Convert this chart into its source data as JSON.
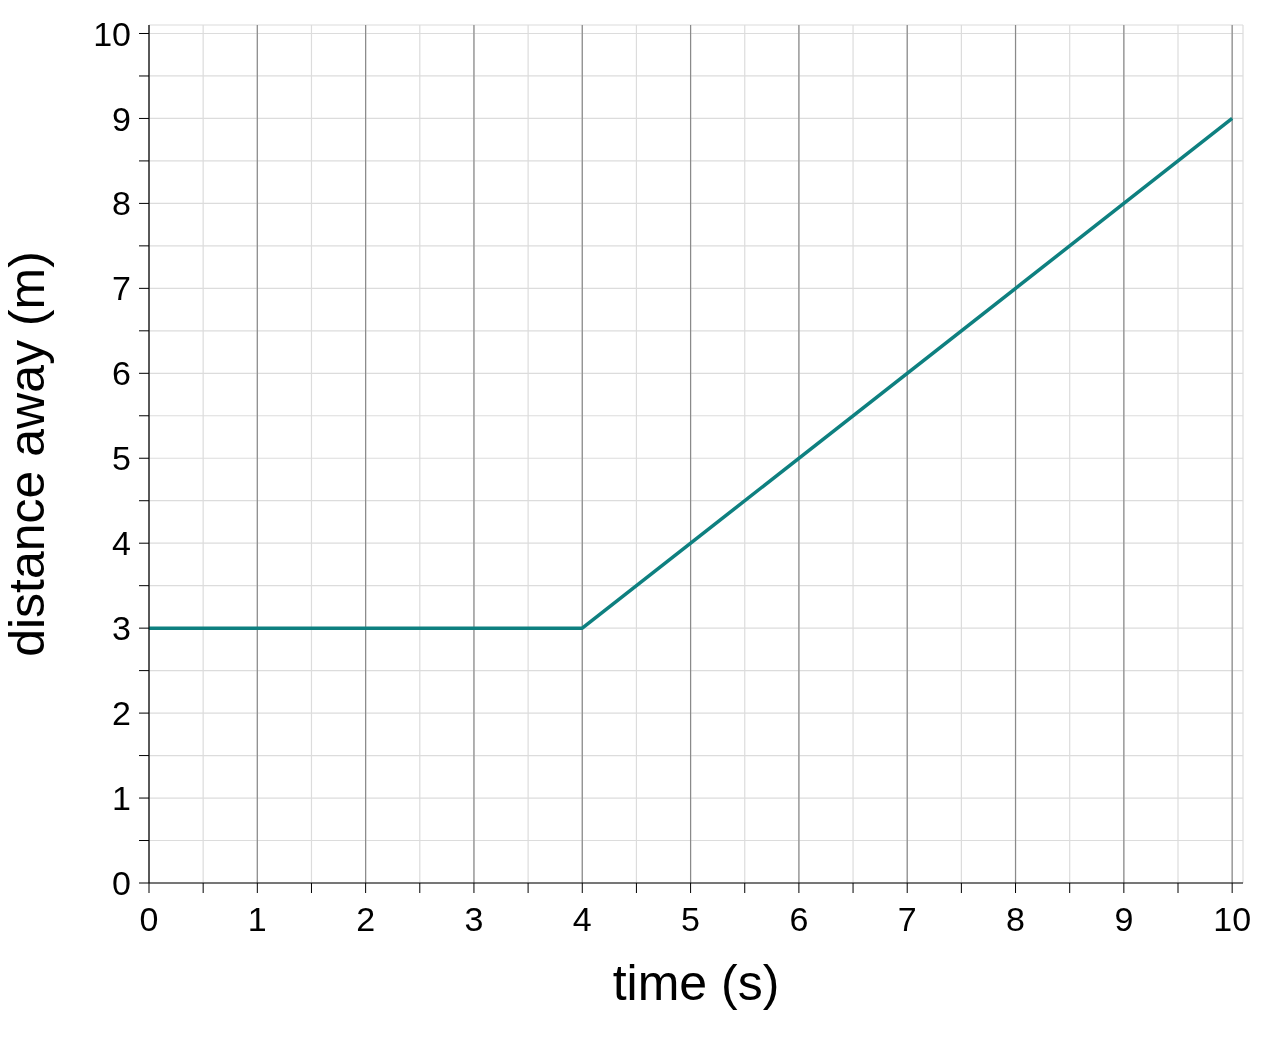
{
  "chart_data": {
    "type": "line",
    "xlabel": "time (s)",
    "ylabel": "distance away (m)",
    "x": [
      0,
      4,
      10
    ],
    "series": [
      {
        "color": "#0e8080",
        "values": [
          3,
          3,
          9
        ]
      }
    ],
    "xlim": [
      0,
      10.1
    ],
    "ylim": [
      0,
      10.1
    ],
    "xticks": [
      0,
      {
        "value": 0.5,
        "label": null
      },
      1,
      {
        "value": 1.5,
        "label": null
      },
      2,
      {
        "value": 2.5,
        "label": null
      },
      3,
      {
        "value": 3.5,
        "label": null
      },
      4,
      {
        "value": 4.5,
        "label": null
      },
      5,
      {
        "value": 5.5,
        "label": null
      },
      6,
      {
        "value": 6.5,
        "label": null
      },
      7,
      {
        "value": 7.5,
        "label": null
      },
      8,
      {
        "value": 8.5,
        "label": null
      },
      9,
      {
        "value": 9.5,
        "label": null
      },
      10
    ],
    "yticks": [
      0,
      {
        "value": 0.5,
        "label": null
      },
      1,
      {
        "value": 1.5,
        "label": null
      },
      2,
      {
        "value": 2.5,
        "label": null
      },
      3,
      {
        "value": 3.5,
        "label": null
      },
      4,
      {
        "value": 4.5,
        "label": null
      },
      5,
      {
        "value": 5.5,
        "label": null
      },
      6,
      {
        "value": 6.5,
        "label": null
      },
      7,
      {
        "value": 7.5,
        "label": null
      },
      8,
      {
        "value": 8.5,
        "label": null
      },
      9,
      {
        "value": 9.5,
        "label": null
      },
      10
    ],
    "grid": true,
    "marker": "none",
    "line_style": "solid"
  }
}
